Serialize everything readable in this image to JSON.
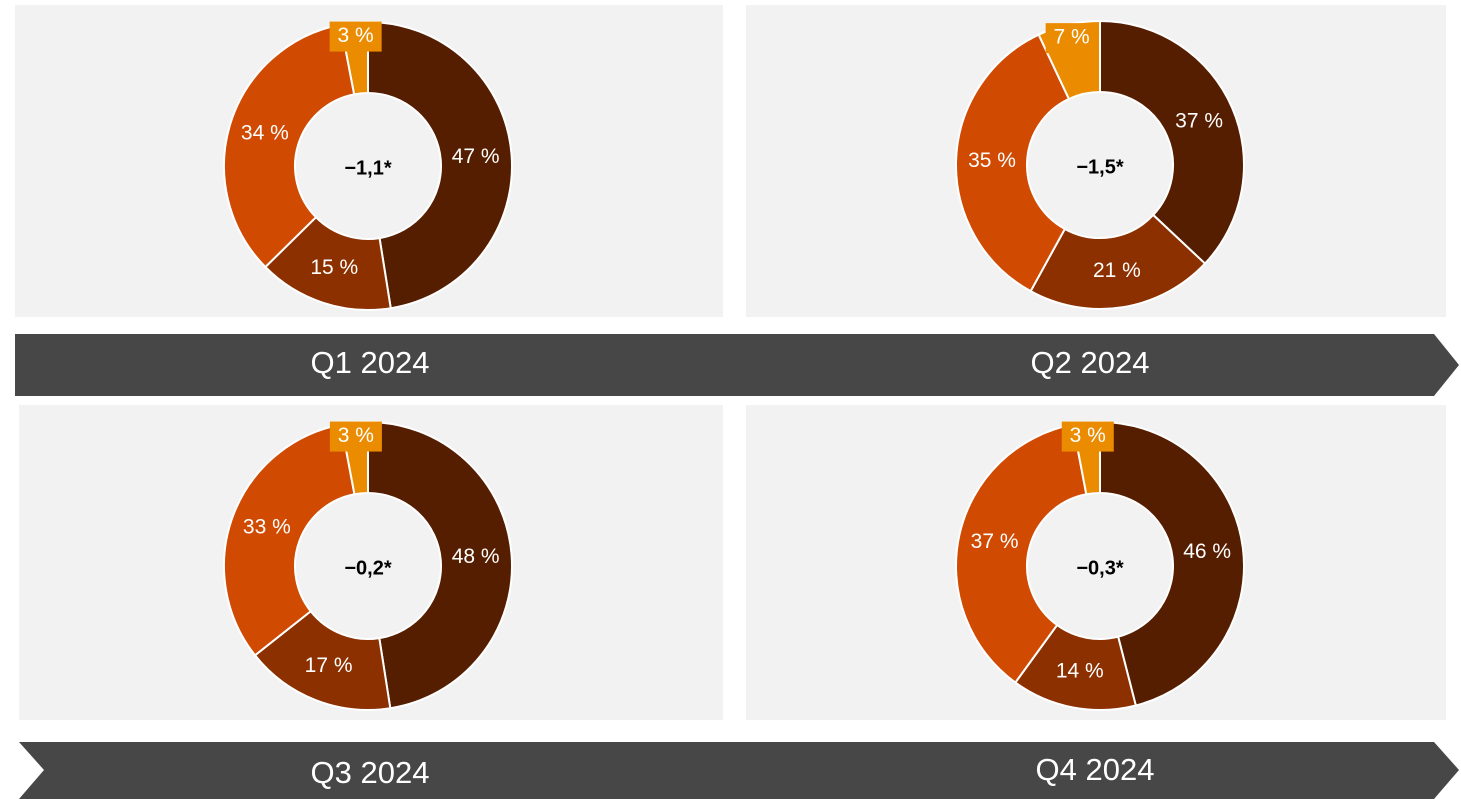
{
  "chart_data": [
    {
      "type": "pie",
      "title": "Q1 2024",
      "center_label": "−1,1*",
      "values": [
        47,
        15,
        34,
        3
      ],
      "value_labels": [
        "47 %",
        "15 %",
        "34 %",
        "3 %"
      ],
      "colors": [
        "#561e00",
        "#8c3000",
        "#d04a02",
        "#eb8c00"
      ]
    },
    {
      "type": "pie",
      "title": "Q2 2024",
      "center_label": "−1,5*",
      "values": [
        37,
        21,
        35,
        7
      ],
      "value_labels": [
        "37 %",
        "21 %",
        "35 %",
        "7 %"
      ],
      "colors": [
        "#561e00",
        "#8c3000",
        "#d04a02",
        "#eb8c00"
      ]
    },
    {
      "type": "pie",
      "title": "Q3 2024",
      "center_label": "−0,2*",
      "values": [
        48,
        17,
        33,
        3
      ],
      "value_labels": [
        "48 %",
        "17 %",
        "33 %",
        "3 %"
      ],
      "colors": [
        "#561e00",
        "#8c3000",
        "#d04a02",
        "#eb8c00"
      ]
    },
    {
      "type": "pie",
      "title": "Q4 2024",
      "center_label": "−0,3*",
      "values": [
        46,
        14,
        37,
        3
      ],
      "value_labels": [
        "46 %",
        "14 %",
        "37 %",
        "3 %"
      ],
      "colors": [
        "#561e00",
        "#8c3000",
        "#d04a02",
        "#eb8c00"
      ]
    }
  ]
}
